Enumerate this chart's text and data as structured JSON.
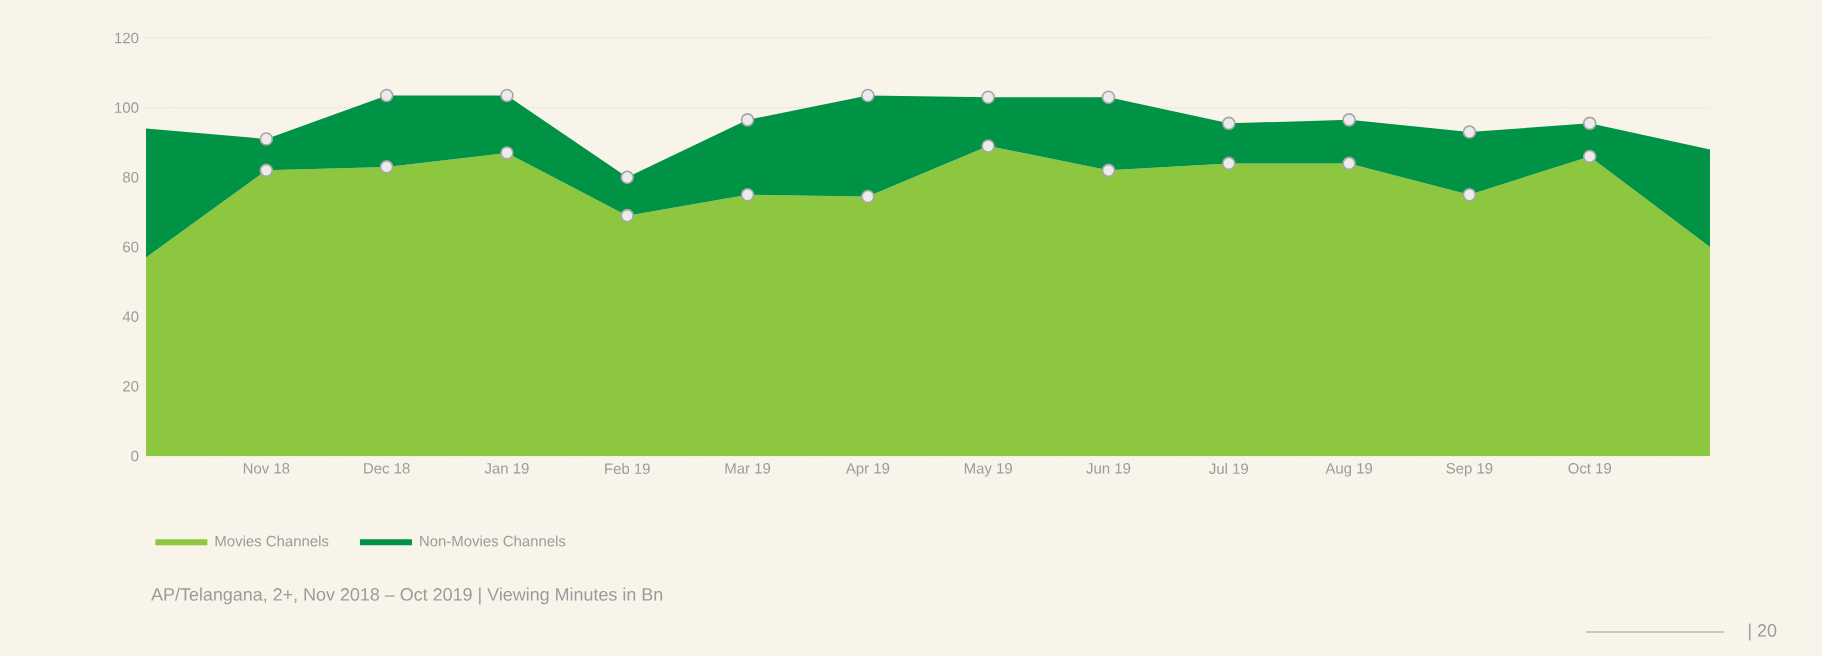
{
  "chart_data": {
    "type": "area",
    "stacked": true,
    "categories": [
      null,
      "Nov 18",
      "Dec 18",
      "Jan 19",
      "Feb 19",
      "Mar 19",
      "Apr 19",
      "May 19",
      "Jun 19",
      "Jul 19",
      "Aug 19",
      "Sep 19",
      "Oct 19",
      null
    ],
    "series": [
      {
        "name": "Movies Channels",
        "color": "#8dc63f",
        "values": [
          57,
          82,
          83,
          87,
          69,
          75,
          74.5,
          89,
          82,
          84,
          84,
          75,
          86,
          60
        ]
      },
      {
        "name": "Non-Movies Channels",
        "color": "#009245",
        "values": [
          37,
          9,
          20.5,
          16.5,
          11,
          21.5,
          29,
          14,
          21,
          11.5,
          12.5,
          18,
          9.5,
          28
        ]
      }
    ],
    "ylim": [
      0,
      120
    ],
    "yticks": [
      0,
      20,
      40,
      60,
      80,
      100,
      120
    ],
    "grid": "y",
    "legend": "bottom left",
    "marker": "circle",
    "annotations": [
      "AP/Telangana, 2+, Nov 2018 – Oct 2019  |  Viewing Minutes in Bn",
      "| 20"
    ]
  }
}
